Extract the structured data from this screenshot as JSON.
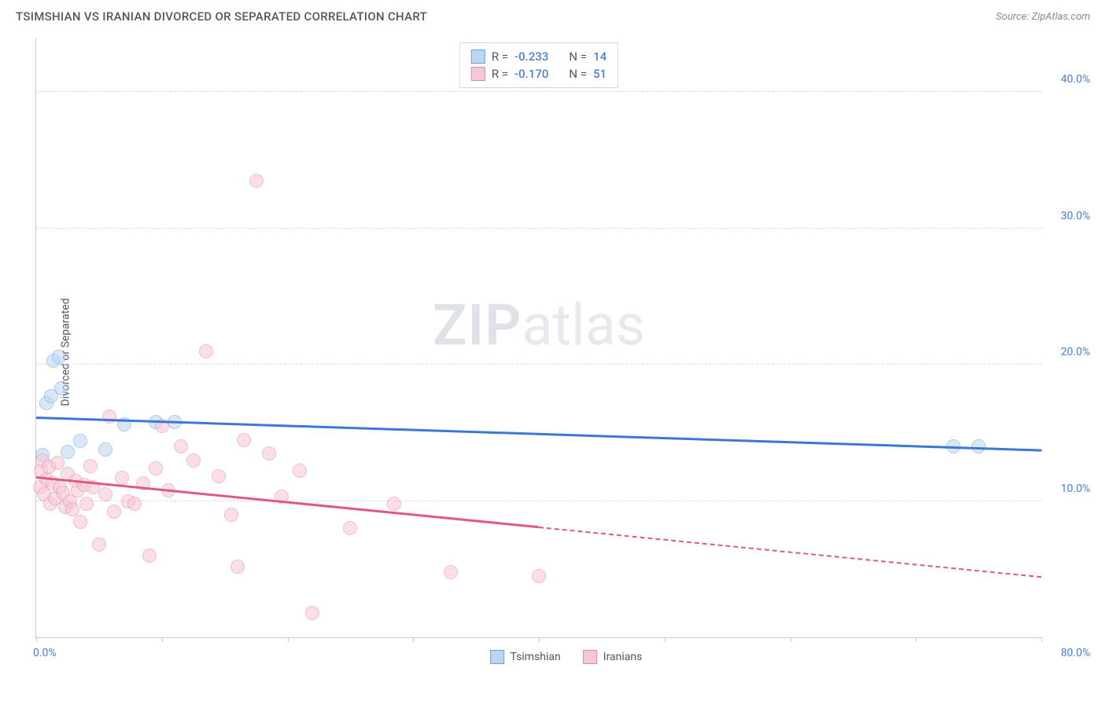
{
  "header": {
    "title": "TSIMSHIAN VS IRANIAN DIVORCED OR SEPARATED CORRELATION CHART",
    "source": "Source: ZipAtlas.com"
  },
  "watermark": {
    "zip": "ZIP",
    "atlas": "atlas"
  },
  "chart": {
    "type": "scatter",
    "background_color": "#ffffff",
    "grid_color": "#dcdce2",
    "axis_color": "#c8c8d0",
    "tick_label_color": "#4a7fd8",
    "axis_label_color": "#555560",
    "ylabel": "Divorced or Separated",
    "xlim": [
      0,
      80
    ],
    "ylim": [
      0,
      44
    ],
    "xticks": [
      0,
      10,
      20,
      30,
      40,
      50,
      60,
      70,
      80
    ],
    "xtick_labels": {
      "0": "0.0%",
      "80": "80.0%"
    },
    "yticks": [
      10,
      20,
      30,
      40
    ],
    "ytick_labels": {
      "10": "10.0%",
      "20": "20.0%",
      "30": "30.0%",
      "40": "40.0%"
    },
    "marker_radius": 9,
    "marker_opacity": 0.55,
    "legend_top": {
      "rows": [
        {
          "swatch_fill": "#bcd5f2",
          "swatch_border": "#6fa3e0",
          "r_label": "R =",
          "r_value": "-0.233",
          "n_label": "N =",
          "n_value": "14"
        },
        {
          "swatch_fill": "#f6c8d3",
          "swatch_border": "#e48aa2",
          "r_label": "R =",
          "r_value": "-0.170",
          "n_label": "N =",
          "n_value": "51"
        }
      ]
    },
    "legend_bottom": {
      "items": [
        {
          "swatch_fill": "#bcd5f2",
          "swatch_border": "#6fa3e0",
          "label": "Tsimshian"
        },
        {
          "swatch_fill": "#f6c8d3",
          "swatch_border": "#e48aa2",
          "label": "Iranians"
        }
      ]
    },
    "series": [
      {
        "name": "Tsimshian",
        "marker_fill": "#bcd5f2",
        "marker_border": "#6fa3e0",
        "line_color": "#3b78d8",
        "data": [
          [
            0.5,
            13.4
          ],
          [
            0.8,
            17.2
          ],
          [
            1.2,
            17.7
          ],
          [
            1.4,
            20.3
          ],
          [
            1.8,
            20.6
          ],
          [
            2.0,
            18.3
          ],
          [
            2.5,
            13.6
          ],
          [
            3.5,
            14.4
          ],
          [
            5.5,
            13.8
          ],
          [
            7.0,
            15.6
          ],
          [
            9.5,
            15.8
          ],
          [
            11.0,
            15.8
          ],
          [
            73.0,
            14.0
          ],
          [
            75.0,
            14.0
          ]
        ],
        "trend": {
          "x1": 0,
          "y1": 16.2,
          "x2": 80,
          "y2": 13.8,
          "dashed_from": null
        }
      },
      {
        "name": "Iranians",
        "marker_fill": "#f6c8d3",
        "marker_border": "#e48aa2",
        "line_color": "#e05a7e",
        "data": [
          [
            0.3,
            11.0
          ],
          [
            0.4,
            12.2
          ],
          [
            0.5,
            13.0
          ],
          [
            0.6,
            10.5
          ],
          [
            0.8,
            11.6
          ],
          [
            1.0,
            12.5
          ],
          [
            1.1,
            9.8
          ],
          [
            1.3,
            11.3
          ],
          [
            1.5,
            10.2
          ],
          [
            1.7,
            12.8
          ],
          [
            1.9,
            11.0
          ],
          [
            2.1,
            10.6
          ],
          [
            2.3,
            9.6
          ],
          [
            2.5,
            12.0
          ],
          [
            2.7,
            10.0
          ],
          [
            2.9,
            9.4
          ],
          [
            3.1,
            11.5
          ],
          [
            3.3,
            10.8
          ],
          [
            3.5,
            8.5
          ],
          [
            3.8,
            11.2
          ],
          [
            4.0,
            9.8
          ],
          [
            4.3,
            12.6
          ],
          [
            4.5,
            11.0
          ],
          [
            5.0,
            6.8
          ],
          [
            5.5,
            10.5
          ],
          [
            5.8,
            16.2
          ],
          [
            6.2,
            9.2
          ],
          [
            6.8,
            11.7
          ],
          [
            7.3,
            10.0
          ],
          [
            7.8,
            9.8
          ],
          [
            8.5,
            11.3
          ],
          [
            9.0,
            6.0
          ],
          [
            9.5,
            12.4
          ],
          [
            10.0,
            15.5
          ],
          [
            10.5,
            10.8
          ],
          [
            11.5,
            14.0
          ],
          [
            12.5,
            13.0
          ],
          [
            13.5,
            21.0
          ],
          [
            14.5,
            11.8
          ],
          [
            15.5,
            9.0
          ],
          [
            16.0,
            5.2
          ],
          [
            16.5,
            14.5
          ],
          [
            17.5,
            33.5
          ],
          [
            18.5,
            13.5
          ],
          [
            19.5,
            10.3
          ],
          [
            21.0,
            12.2
          ],
          [
            22.0,
            1.8
          ],
          [
            25.0,
            8.0
          ],
          [
            28.5,
            9.8
          ],
          [
            33.0,
            4.8
          ],
          [
            40.0,
            4.5
          ]
        ],
        "trend": {
          "x1": 0,
          "y1": 11.8,
          "x2": 80,
          "y2": 4.5,
          "dashed_from": 40
        }
      }
    ]
  }
}
